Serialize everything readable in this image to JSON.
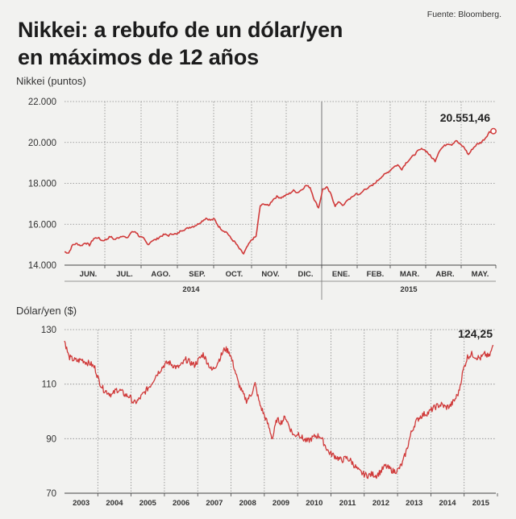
{
  "header": {
    "title_line1": "Nikkei: a rebufo de un dólar/yen",
    "title_line2": "en máximos de 12 años",
    "source": "Fuente: Bloomberg."
  },
  "colors": {
    "series": "#d03a3a",
    "grid": "#888888",
    "background": "#f2f2f0"
  },
  "chart_data": [
    {
      "type": "line",
      "ylabel": "Nikkei (puntos)",
      "ylim": [
        14000,
        22000
      ],
      "yticks": [
        14000,
        16000,
        18000,
        20000,
        22000
      ],
      "ytick_labels": [
        "14.000",
        "16.000",
        "18.000",
        "20.000",
        "22.000"
      ],
      "months": [
        "JUN.",
        "JUL.",
        "AGO.",
        "SEP.",
        "OCT.",
        "NOV.",
        "DIC.",
        "ENE.",
        "FEB.",
        "MAR.",
        "ABR.",
        "MAY."
      ],
      "years": [
        "2014",
        "2015"
      ],
      "grid": true,
      "last_value_label": "20.551,46",
      "series": [
        {
          "values": [
            14650,
            14600,
            15000,
            15050,
            14950,
            15100,
            14980,
            15300,
            15350,
            15200,
            15250,
            15400,
            15250,
            15350,
            15450,
            15300,
            15600,
            15650,
            15400,
            15300,
            15000,
            15200,
            15250,
            15400,
            15500,
            15450,
            15550,
            15500,
            15700,
            15750,
            15850,
            15900,
            16000,
            16150,
            16300,
            16200,
            16250,
            15900,
            15700,
            15600,
            15300,
            15100,
            14800,
            14550,
            14950,
            15250,
            15400,
            16900,
            17000,
            16900,
            17200,
            17350,
            17300,
            17400,
            17500,
            17650,
            17550,
            17700,
            17900,
            17800,
            17200,
            16800,
            17700,
            17800,
            17450,
            16900,
            17100,
            16900,
            17200,
            17300,
            17500,
            17450,
            17700,
            17800,
            17900,
            18100,
            18300,
            18450,
            18600,
            18800,
            18900,
            18700,
            19000,
            19200,
            19400,
            19600,
            19700,
            19550,
            19300,
            19100,
            19600,
            19800,
            19950,
            19900,
            20100,
            19900,
            19750,
            19400,
            19700,
            19900,
            20000,
            20200,
            20500,
            20551.46
          ]
        }
      ]
    },
    {
      "type": "line",
      "ylabel": "Dólar/yen ($)",
      "ylim": [
        70,
        130
      ],
      "yticks": [
        70,
        90,
        110,
        130
      ],
      "ytick_labels": [
        "70",
        "90",
        "110",
        "130"
      ],
      "x_labels": [
        "2003",
        "2004",
        "2005",
        "2006",
        "2007",
        "2008",
        "2009",
        "2010",
        "2011",
        "2012",
        "2013",
        "2014",
        "2015"
      ],
      "grid": true,
      "last_value_label": "124,25",
      "series": [
        {
          "values": [
            126,
            120,
            119,
            118.5,
            119,
            118,
            117.5,
            116,
            111,
            108,
            107,
            106,
            108,
            107.5,
            106,
            105.5,
            103,
            104,
            106,
            108,
            110,
            113,
            115,
            117,
            118,
            117,
            116,
            117,
            119,
            118,
            117,
            119,
            121,
            118,
            115,
            117,
            120,
            123,
            122,
            117,
            111,
            107,
            104,
            106,
            110,
            103,
            99,
            95,
            90,
            97,
            96,
            98,
            94,
            91,
            92,
            90,
            89,
            90,
            91,
            91,
            88,
            85,
            84,
            83,
            82,
            83,
            82,
            80,
            78,
            77,
            76.5,
            77,
            76.5,
            78,
            80,
            79,
            78,
            78.5,
            81,
            86,
            92,
            96,
            98,
            99,
            99.5,
            101,
            102,
            102.5,
            101.5,
            102,
            104,
            107,
            115,
            120,
            121,
            120,
            119.5,
            121,
            120,
            124.25
          ]
        }
      ]
    }
  ]
}
